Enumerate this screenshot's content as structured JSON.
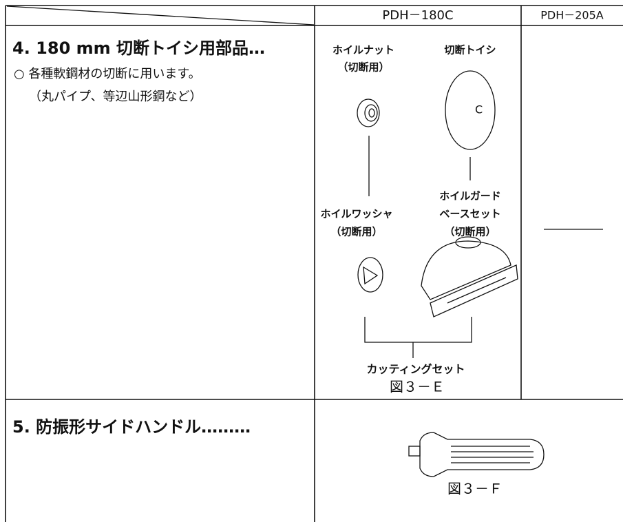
{
  "table": {
    "header": [
      "PDH－180C",
      "PDH－205A"
    ],
    "rows": [
      {
        "title": "4. 180 mm 切断トイシ用部品…",
        "notes": [
          "○ 各種軟鋼材の切断に用います。",
          "（丸パイプ、等辺山形鋼など）"
        ],
        "parts": [
          {
            "lines": [
              "ホイルナット",
              "（切断用）"
            ]
          },
          {
            "lines": [
              "切断トイシ"
            ]
          },
          {
            "lines": [
              "ホイルワッシャ",
              "（切断用）"
            ]
          },
          {
            "lines": [
              "ホイルガード",
              "ベースセット",
              "（切断用）"
            ]
          }
        ],
        "set_label": "カッティングセット",
        "figure": "図３－Ｅ"
      },
      {
        "title": "5. 防振形サイドハンドル………",
        "figure": "図３－Ｆ"
      }
    ]
  }
}
